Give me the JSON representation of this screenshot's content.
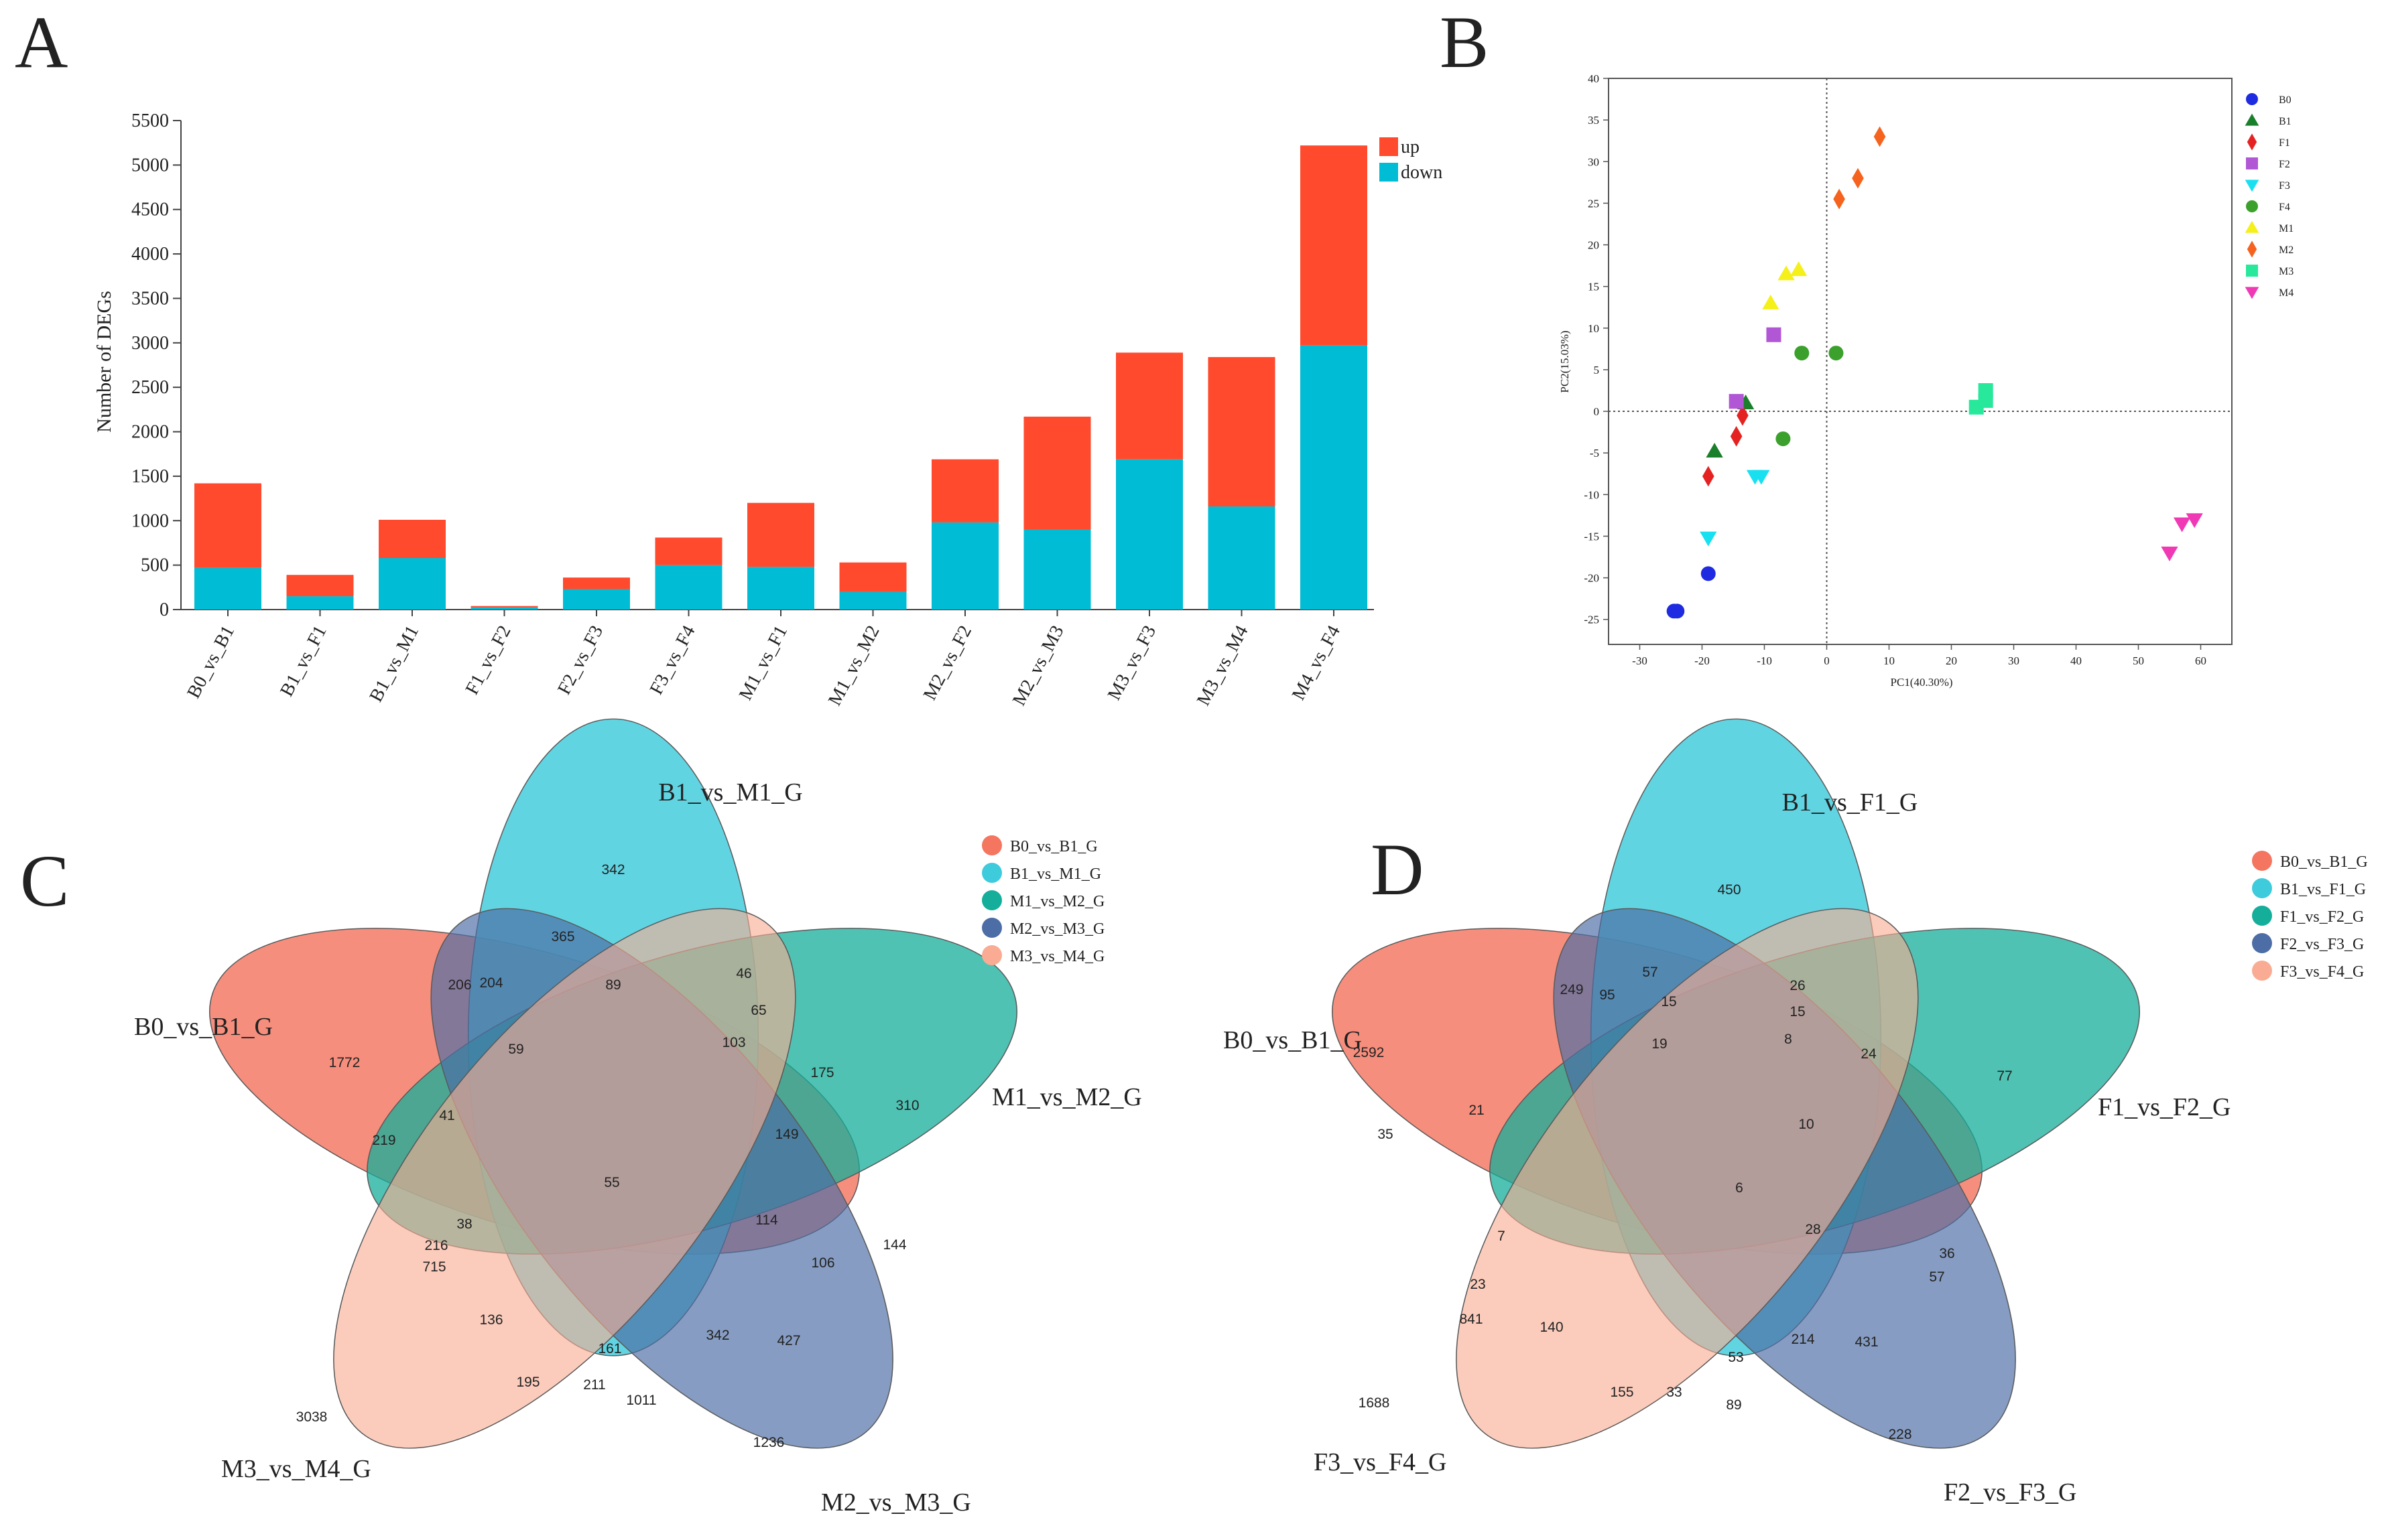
{
  "panels": {
    "A": {
      "letter": "A",
      "chart_data": {
        "type": "bar",
        "stacked": true,
        "ylabel": "Number of DEGs",
        "ylim": [
          0,
          5500
        ],
        "yticks": [
          0,
          500,
          1000,
          1500,
          2000,
          2500,
          3000,
          3500,
          4000,
          4500,
          5000,
          5500
        ],
        "yticklabels": [
          "0",
          "500",
          "1000",
          "1500",
          "2000",
          "2500",
          "3000",
          "3500",
          "4000",
          "4500",
          "5000",
          "5500"
        ],
        "categories": [
          "B0_vs_B1",
          "B1_vs_F1",
          "B1_vs_M1",
          "F1_vs_F2",
          "F2_vs_F3",
          "F3_vs_F4",
          "M1_vs_F1",
          "M1_vs_M2",
          "M2_vs_F2",
          "M2_vs_M3",
          "M3_vs_F3",
          "M3_vs_M4",
          "M4_vs_F4"
        ],
        "series": [
          {
            "name": "down",
            "color": "#00BCD4",
            "values": [
              470,
              150,
              580,
              25,
              230,
              500,
              480,
              200,
              980,
              900,
              1690,
              1160,
              2970
            ]
          },
          {
            "name": "up",
            "color": "#FF4A2E",
            "values": [
              950,
              240,
              430,
              15,
              130,
              310,
              720,
              330,
              710,
              1270,
              1200,
              1680,
              2250
            ]
          }
        ],
        "legend": [
          {
            "label": "up",
            "color": "#FF4A2E"
          },
          {
            "label": "down",
            "color": "#00BCD4"
          }
        ]
      }
    },
    "B": {
      "letter": "B",
      "chart_data": {
        "type": "scatter",
        "xlabel": "PC1(40.30%)",
        "ylabel": "PC2(15.03%)",
        "xlim": [
          -35,
          65
        ],
        "ylim": [
          -28,
          40
        ],
        "xticks": [
          -30,
          -20,
          -10,
          0,
          10,
          20,
          30,
          40,
          50,
          60
        ],
        "xticklabels": [
          "-30",
          "-20",
          "-10",
          "0",
          "10",
          "20",
          "30",
          "40",
          "50",
          "60"
        ],
        "yticks": [
          -25,
          -20,
          -15,
          -10,
          -5,
          0,
          5,
          10,
          15,
          20,
          25,
          30,
          35,
          40
        ],
        "yticklabels": [
          "-25",
          "-20",
          "-15",
          "-10",
          "-5",
          "0",
          "5",
          "10",
          "15",
          "20",
          "25",
          "30",
          "35",
          "40"
        ],
        "series": [
          {
            "name": "B0",
            "marker": "circle",
            "color": "#1E2BE0",
            "points": [
              [
                -24.5,
                -24
              ],
              [
                -24,
                -24
              ],
              [
                -19,
                -19.5
              ]
            ]
          },
          {
            "name": "B1",
            "marker": "triangle-up",
            "color": "#1A7F2A",
            "points": [
              [
                -18,
                -4.8
              ],
              [
                -13,
                1
              ]
            ]
          },
          {
            "name": "F1",
            "marker": "diamond",
            "color": "#E52222",
            "points": [
              [
                -19,
                -7.8
              ],
              [
                -14.5,
                -3
              ],
              [
                -13.5,
                -0.5
              ]
            ]
          },
          {
            "name": "F2",
            "marker": "square",
            "color": "#B157D6",
            "points": [
              [
                -14.5,
                1.2
              ],
              [
                -8.5,
                9.2
              ]
            ]
          },
          {
            "name": "F3",
            "marker": "triangle-down",
            "color": "#19E0F0",
            "points": [
              [
                -19,
                -15.2
              ],
              [
                -11.5,
                -7.8
              ],
              [
                -10.5,
                -7.8
              ]
            ]
          },
          {
            "name": "F4",
            "marker": "circle",
            "color": "#3BA02C",
            "points": [
              [
                -7,
                -3.3
              ],
              [
                -4,
                7
              ],
              [
                1.5,
                7
              ]
            ]
          },
          {
            "name": "M1",
            "marker": "triangle-up",
            "color": "#F5F01A",
            "points": [
              [
                -9,
                13
              ],
              [
                -6.5,
                16.5
              ],
              [
                -4.5,
                17
              ]
            ]
          },
          {
            "name": "M2",
            "marker": "diamond",
            "color": "#F5631E",
            "points": [
              [
                2,
                25.5
              ],
              [
                5,
                28
              ],
              [
                8.5,
                33
              ]
            ]
          },
          {
            "name": "M3",
            "marker": "square",
            "color": "#27E89B",
            "points": [
              [
                24,
                0.5
              ],
              [
                25.5,
                2.5
              ],
              [
                25.5,
                1.3
              ]
            ]
          },
          {
            "name": "M4",
            "marker": "triangle-down",
            "color": "#F03AB5",
            "points": [
              [
                55,
                -17
              ],
              [
                57,
                -13.5
              ],
              [
                59,
                -13
              ]
            ]
          }
        ]
      }
    },
    "C": {
      "letter": "C",
      "sets": [
        {
          "label": "B0_vs_B1_G",
          "color": "#F47560"
        },
        {
          "label": "B1_vs_M1_G",
          "color": "#3ECBDC"
        },
        {
          "label": "M1_vs_M2_G",
          "color": "#14AE9A"
        },
        {
          "label": "M2_vs_M3_G",
          "color": "#4C6DA5"
        },
        {
          "label": "M3_vs_M4_G",
          "color": "#F9AC93"
        }
      ],
      "numbers": [
        "342",
        "365",
        "46",
        "204",
        "89",
        "206",
        "65",
        "59",
        "103",
        "175",
        "1772",
        "310",
        "41",
        "219",
        "149",
        "55",
        "114",
        "38",
        "144",
        "216",
        "106",
        "715",
        "136",
        "342",
        "427",
        "161",
        "195",
        "211",
        "1011",
        "3038",
        "1236"
      ]
    },
    "D": {
      "letter": "D",
      "sets": [
        {
          "label": "B0_vs_B1_G",
          "color": "#F47560"
        },
        {
          "label": "B1_vs_F1_G",
          "color": "#3ECBDC"
        },
        {
          "label": "F1_vs_F2_G",
          "color": "#14AE9A"
        },
        {
          "label": "F2_vs_F3_G",
          "color": "#4C6DA5"
        },
        {
          "label": "F3_vs_F4_G",
          "color": "#F9AC93"
        }
      ],
      "numbers": [
        "450",
        "57",
        "26",
        "249",
        "95",
        "15",
        "15",
        "19",
        "8",
        "24",
        "2592",
        "77",
        "35",
        "21",
        "10",
        "6",
        "28",
        "7",
        "36",
        "23",
        "57",
        "841",
        "140",
        "214",
        "431",
        "53",
        "155",
        "33",
        "89",
        "1688",
        "228"
      ]
    }
  }
}
